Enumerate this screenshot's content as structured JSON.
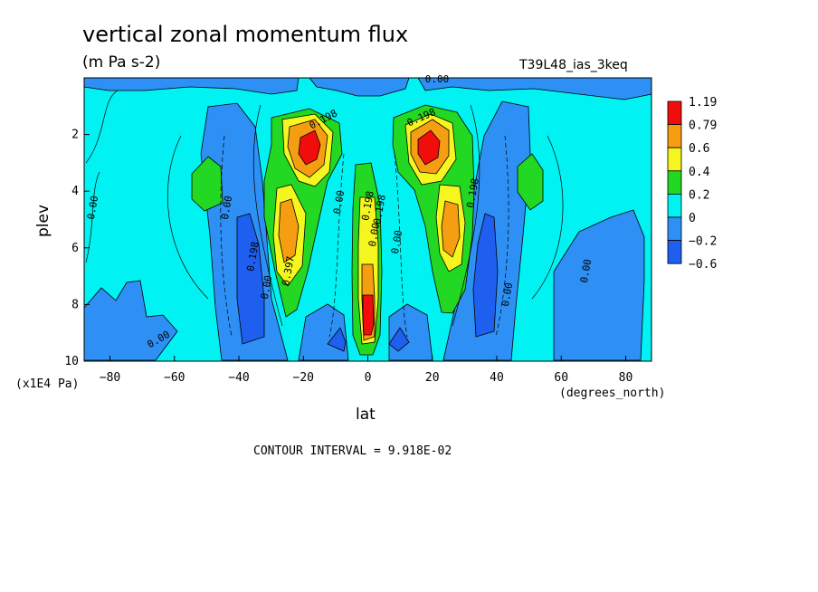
{
  "chart_data": {
    "type": "heatmap",
    "title": "vertical zonal momentum flux",
    "units": "(m Pa s-2)",
    "run_label": "T39L48_ias_3keq",
    "xlabel": "lat",
    "ylabel": "plev",
    "x_unit": "(degrees_north)",
    "y_unit": "(x1E4 Pa)",
    "xlim": [
      -88,
      88
    ],
    "ylim": [
      10,
      0
    ],
    "x_ticks": [
      -80,
      -60,
      -40,
      -20,
      0,
      20,
      40,
      60,
      80
    ],
    "x_tick_labels": [
      "−80",
      "−60",
      "−40",
      "−20",
      "0",
      "20",
      "40",
      "60",
      "80"
    ],
    "y_ticks": [
      2,
      4,
      6,
      8,
      10
    ],
    "y_tick_labels": [
      "2",
      "4",
      "6",
      "8",
      "10"
    ],
    "contour_interval": "CONTOUR INTERVAL = 9.918E-02",
    "colorbar": {
      "labels": [
        "1.19",
        "0.79",
        "0.6",
        "0.4",
        "0.2",
        "0",
        "−0.2",
        "−0.6"
      ],
      "colors": [
        "#f20d0d",
        "#f59e12",
        "#f5f51f",
        "#22d822",
        "#00f2f2",
        "#2e8ff5",
        "#1e5ff0"
      ]
    },
    "contour_labels": [
      "0.00",
      "0.198",
      "0.198",
      "0.00",
      "0.00",
      "0.00",
      "0.198",
      "0.198",
      "0.00",
      "0.00",
      "0.00",
      "0.397",
      "0.198",
      "0.00",
      "0.00",
      "0.198",
      "0.00",
      "0.00",
      "0.00"
    ],
    "features": [
      {
        "lat": -19,
        "plev": 2.6,
        "value": 1.19
      },
      {
        "lat": 18,
        "plev": 2.6,
        "value": 1.19
      },
      {
        "lat": 0,
        "plev": 8.2,
        "value": 1.19
      },
      {
        "lat": -25,
        "plev": 5.7,
        "value": 0.6
      },
      {
        "lat": 25,
        "plev": 5.7,
        "value": 0.6
      },
      {
        "lat": -50,
        "plev": 3.6,
        "value": 0.2
      },
      {
        "lat": 49,
        "plev": 3.6,
        "value": 0.2
      },
      {
        "lat": -37,
        "plev": 7.0,
        "value": -0.6
      },
      {
        "lat": 37,
        "plev": 7.0,
        "value": -0.6
      }
    ]
  }
}
